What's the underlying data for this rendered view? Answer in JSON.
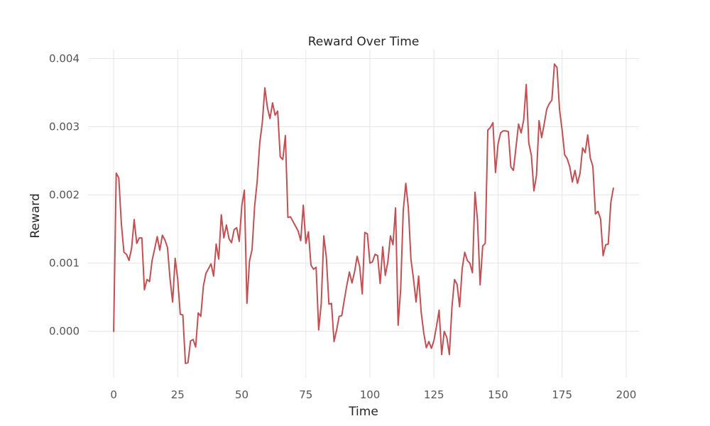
{
  "chart_data": {
    "type": "line",
    "title": "Reward Over Time",
    "xlabel": "Time",
    "ylabel": "Reward",
    "xlim": [
      -10,
      205
    ],
    "ylim": [
      -0.00068,
      0.00413
    ],
    "xticks": [
      0,
      25,
      50,
      75,
      100,
      125,
      150,
      175,
      200
    ],
    "xtick_labels": [
      "0",
      "25",
      "50",
      "75",
      "100",
      "125",
      "150",
      "175",
      "200"
    ],
    "yticks": [
      0.0,
      0.001,
      0.002,
      0.003,
      0.004
    ],
    "ytick_labels": [
      "0.000",
      "0.001",
      "0.002",
      "0.003",
      "0.004"
    ],
    "grid": true,
    "legend": "none",
    "colors": {
      "series": "#c44e52",
      "grid": "#e5e5e5",
      "background": "#ffffff"
    },
    "series": [
      {
        "color": "#c44e52",
        "x": [
          0,
          1,
          2,
          3,
          4,
          5,
          6,
          7,
          8,
          9,
          10,
          11,
          12,
          13,
          14,
          15,
          16,
          17,
          18,
          19,
          20,
          21,
          22,
          23,
          24,
          25,
          26,
          27,
          28,
          29,
          30,
          31,
          32,
          33,
          34,
          35,
          36,
          37,
          38,
          39,
          40,
          41,
          42,
          43,
          44,
          45,
          46,
          47,
          48,
          49,
          50,
          51,
          52,
          53,
          54,
          55,
          56,
          57,
          58,
          59,
          60,
          61,
          62,
          63,
          64,
          65,
          66,
          67,
          68,
          69,
          70,
          71,
          72,
          73,
          74,
          75,
          76,
          77,
          78,
          79,
          80,
          81,
          82,
          83,
          84,
          85,
          86,
          87,
          88,
          89,
          90,
          91,
          92,
          93,
          94,
          95,
          96,
          97,
          98,
          99,
          100,
          101,
          102,
          103,
          104,
          105,
          106,
          107,
          108,
          109,
          110,
          111,
          112,
          113,
          114,
          115,
          116,
          117,
          118,
          119,
          120,
          121,
          122,
          123,
          124,
          125,
          126,
          127,
          128,
          129,
          130,
          131,
          132,
          133,
          134,
          135,
          136,
          137,
          138,
          139,
          140,
          141,
          142,
          143,
          144,
          145,
          146,
          147,
          148,
          149,
          150,
          151,
          152,
          153,
          154,
          155,
          156,
          157,
          158,
          159,
          160,
          161,
          162,
          163,
          164,
          165,
          166,
          167,
          168,
          169,
          170,
          171,
          172,
          173,
          174,
          175,
          176,
          177,
          178,
          179,
          180,
          181,
          182,
          183,
          184,
          185,
          186,
          187,
          188,
          189,
          190,
          191,
          192,
          193,
          194,
          195
        ],
        "y": [
          0.0,
          0.00232,
          0.00225,
          0.00158,
          0.00116,
          0.00113,
          0.00104,
          0.00122,
          0.00164,
          0.00129,
          0.00137,
          0.00137,
          0.00061,
          0.00076,
          0.00073,
          0.00104,
          0.00121,
          0.00139,
          0.00119,
          0.00141,
          0.00134,
          0.00123,
          0.00077,
          0.00043,
          0.00107,
          0.00076,
          0.00025,
          0.00024,
          -0.00047,
          -0.00046,
          -0.00014,
          -0.00012,
          -0.00023,
          0.00027,
          0.00022,
          0.00066,
          0.00085,
          0.00092,
          0.00099,
          0.00081,
          0.00128,
          0.00106,
          0.00171,
          0.00137,
          0.00156,
          0.00136,
          0.0013,
          0.00149,
          0.00152,
          0.00132,
          0.00184,
          0.00207,
          0.00041,
          0.00103,
          0.0012,
          0.00183,
          0.0022,
          0.00276,
          0.00306,
          0.00357,
          0.00328,
          0.00312,
          0.00335,
          0.00317,
          0.00323,
          0.00256,
          0.00252,
          0.00287,
          0.00167,
          0.00168,
          0.00161,
          0.00154,
          0.00147,
          0.00133,
          0.00185,
          0.00129,
          0.00146,
          0.00097,
          0.00091,
          0.00094,
          2e-05,
          0.00041,
          0.0014,
          0.00108,
          0.0004,
          0.00041,
          -0.00015,
          2e-05,
          0.00022,
          0.00023,
          0.00046,
          0.00068,
          0.00087,
          0.00071,
          0.00087,
          0.0011,
          0.00095,
          0.00055,
          0.00145,
          0.00143,
          0.001,
          0.00102,
          0.00113,
          0.00111,
          0.0007,
          0.00124,
          0.00082,
          0.00102,
          0.0014,
          0.00127,
          0.00181,
          9e-05,
          0.00062,
          0.00177,
          0.00217,
          0.00181,
          0.00106,
          0.00077,
          0.00043,
          0.00081,
          0.00028,
          -2e-05,
          -0.00024,
          -0.00015,
          -0.00025,
          -0.00013,
          8e-05,
          0.00031,
          -0.00034,
          0.0,
          -9e-05,
          -0.00034,
          0.00035,
          0.00076,
          0.00069,
          0.00036,
          0.00092,
          0.00116,
          0.00104,
          0.001,
          0.00086,
          0.00204,
          0.00162,
          0.00068,
          0.00125,
          0.00129,
          0.00295,
          0.00299,
          0.00306,
          0.00233,
          0.00275,
          0.00291,
          0.00294,
          0.00294,
          0.00293,
          0.00241,
          0.00236,
          0.0027,
          0.00304,
          0.00291,
          0.0031,
          0.00362,
          0.00276,
          0.00258,
          0.00206,
          0.00229,
          0.00309,
          0.00284,
          0.00304,
          0.00326,
          0.00334,
          0.00339,
          0.00392,
          0.00387,
          0.00325,
          0.00295,
          0.00259,
          0.00253,
          0.00241,
          0.00219,
          0.00236,
          0.00217,
          0.00232,
          0.00269,
          0.00262,
          0.00288,
          0.00254,
          0.00242,
          0.00172,
          0.00176,
          0.00165,
          0.00111,
          0.00127,
          0.00128,
          0.00189,
          0.0021
        ]
      }
    ]
  }
}
